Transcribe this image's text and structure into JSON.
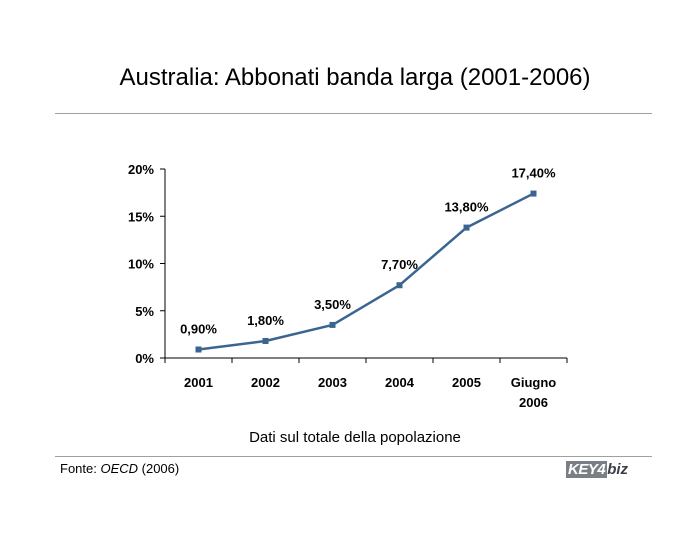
{
  "header": {
    "title": "Australia: Abbonati banda larga (2001-2006)"
  },
  "chart_data": {
    "type": "line",
    "categories": [
      "2001",
      "2002",
      "2003",
      "2004",
      "2005",
      [
        "Giugno",
        "2006"
      ]
    ],
    "series": [
      {
        "values": [
          0.9,
          1.8,
          3.5,
          7.7,
          13.8,
          17.4
        ],
        "labels": [
          "0,90%",
          "1,80%",
          "3,50%",
          "7,70%",
          "13,80%",
          "17,40%"
        ]
      }
    ],
    "yticks": [
      0,
      5,
      10,
      15,
      20
    ],
    "ytick_labels": [
      "0%",
      "5%",
      "10%",
      "15%",
      "20%"
    ],
    "ylim": [
      0,
      20
    ],
    "grid": false,
    "line_color": "#3b6591"
  },
  "footer": {
    "subtitle": "Dati sul totale della popolazione",
    "source_prefix": "Fonte: ",
    "source_name": "OECD",
    "source_year": " (2006)",
    "logo_text": {
      "key": "KEY4",
      "biz": "biz"
    }
  }
}
